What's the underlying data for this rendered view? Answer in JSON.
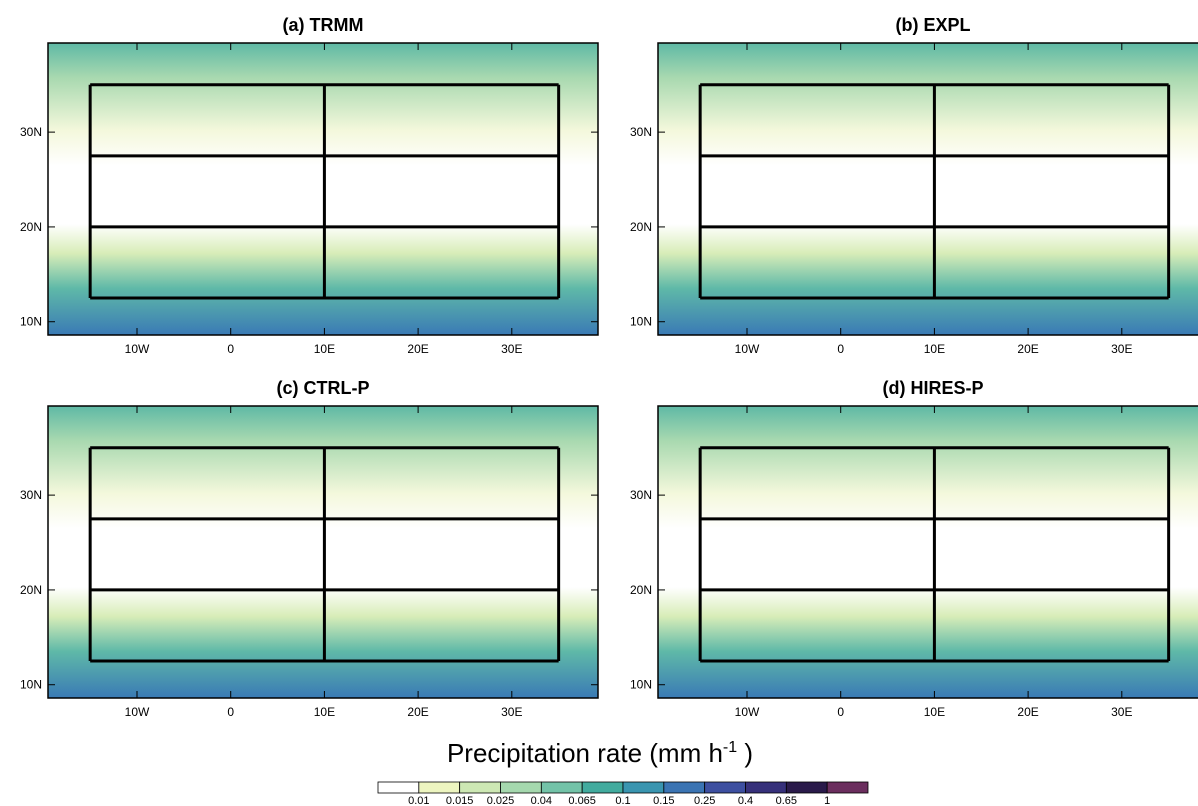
{
  "panels": [
    {
      "title": "(a) TRMM",
      "xlim": [
        -19.5,
        39.2
      ],
      "ylim": [
        8.6,
        39.4
      ],
      "xticks": [
        {
          "value": -10,
          "label": "10W"
        },
        0,
        {
          "value": 10,
          "label": "10E"
        },
        {
          "value": 20,
          "label": "20E"
        },
        {
          "value": 30,
          "label": "30E"
        }
      ],
      "yticks": [
        {
          "value": 10,
          "label": "10N"
        },
        {
          "value": 20,
          "label": "20N"
        },
        {
          "value": 30,
          "label": "30N"
        }
      ]
    },
    {
      "title": "(b) EXPL",
      "xlim": [
        -19.5,
        39.2
      ],
      "ylim": [
        8.6,
        39.4
      ],
      "xticks": [
        {
          "value": -10,
          "label": "10W"
        },
        0,
        {
          "value": 10,
          "label": "10E"
        },
        {
          "value": 20,
          "label": "20E"
        },
        {
          "value": 30,
          "label": "30E"
        }
      ],
      "yticks": [
        {
          "value": 10,
          "label": "10N"
        },
        {
          "value": 20,
          "label": "20N"
        },
        {
          "value": 30,
          "label": "30N"
        }
      ]
    },
    {
      "title": "(c) CTRL-P",
      "xlim": [
        -19.5,
        39.2
      ],
      "ylim": [
        8.6,
        39.4
      ],
      "xticks": [
        {
          "value": -10,
          "label": "10W"
        },
        0,
        {
          "value": 10,
          "label": "10E"
        },
        {
          "value": 20,
          "label": "20E"
        },
        {
          "value": 30,
          "label": "30E"
        }
      ],
      "yticks": [
        {
          "value": 10,
          "label": "10N"
        },
        {
          "value": 20,
          "label": "20N"
        },
        {
          "value": 30,
          "label": "30N"
        }
      ]
    },
    {
      "title": "(d) HIRES-P",
      "xlim": [
        -19.5,
        39.2
      ],
      "ylim": [
        8.6,
        39.4
      ],
      "xticks": [
        {
          "value": -10,
          "label": "10W"
        },
        0,
        {
          "value": 10,
          "label": "10E"
        },
        {
          "value": 20,
          "label": "20E"
        },
        {
          "value": 30,
          "label": "30E"
        }
      ],
      "yticks": [
        {
          "value": 10,
          "label": "10N"
        },
        {
          "value": 20,
          "label": "20N"
        },
        {
          "value": 30,
          "label": "30N"
        }
      ]
    }
  ],
  "colorbar": {
    "title": "Precipitation rate (mm h",
    "title_superscript": "-1",
    "title_close": " )",
    "ticks": [
      0.01,
      0.015,
      0.025,
      0.04,
      0.065,
      0.1,
      0.15,
      0.25,
      0.4,
      0.65,
      1
    ],
    "colors": [
      "#ffffff",
      "#edf5c0",
      "#cde8b4",
      "#a5d8ae",
      "#73c3a8",
      "#42ab9e",
      "#3a95b0",
      "#3b74b3",
      "#3d4fa0",
      "#36307a",
      "#2a1a4a",
      "#6b2e5e"
    ]
  }
}
